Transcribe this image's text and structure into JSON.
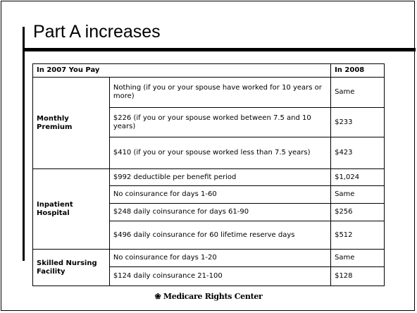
{
  "title": "Part A increases",
  "table": {
    "header": [
      "In 2007 You Pay",
      "In 2008"
    ],
    "groups": [
      {
        "label": "Monthly Premium",
        "rows": [
          [
            "Nothing (if you or your spouse have worked for 10 years or more)",
            "Same"
          ],
          [
            "$226 (if you or your spouse worked between 7.5 and 10 years)",
            "$233"
          ],
          [
            "$410 (if you or your spouse worked less than 7.5 years)",
            "$423"
          ]
        ]
      },
      {
        "label": "Inpatient Hospital",
        "rows": [
          [
            "$992 deductible per benefit period",
            "$1,024"
          ],
          [
            "No coinsurance for days 1-60",
            "Same"
          ],
          [
            "$248 daily coinsurance for days 61-90",
            "$256"
          ],
          [
            "$496 daily coinsurance for 60 lifetime reserve days",
            "$512"
          ]
        ]
      },
      {
        "label": "Skilled Nursing Facility",
        "rows": [
          [
            "No coinsurance for days 1-20",
            "Same"
          ],
          [
            "$124 daily coinsurance 21-100",
            "$128"
          ]
        ]
      }
    ]
  },
  "footer": "Medicare Rights Center"
}
